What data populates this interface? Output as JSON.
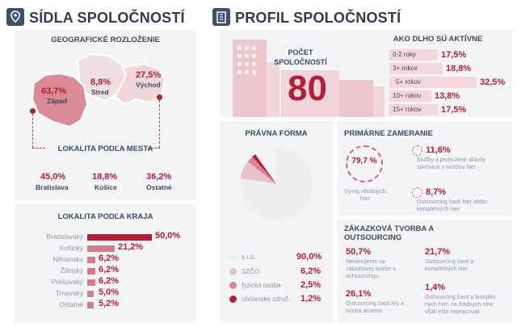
{
  "left": {
    "title": "SÍDLA SPOLOČNOSTÍ",
    "geo_title": "GEOGRAFICKÉ ROZLOŽENIE",
    "regions": [
      {
        "name": "Západ",
        "pct": "63,7%"
      },
      {
        "name": "Stred",
        "pct": "8,8%"
      },
      {
        "name": "Východ",
        "pct": "27,5%"
      }
    ],
    "city_title": "LOKALITA PODĽA MESTA",
    "cities": [
      {
        "name": "Bratislava",
        "pct": "45,0%"
      },
      {
        "name": "Košice",
        "pct": "18,8%"
      },
      {
        "name": "Ostatné",
        "pct": "36,2%"
      }
    ],
    "kraj_title": "LOKALITA PODĽA KRAJA",
    "kraje": [
      {
        "name": "Bratislavský",
        "pct": "50,0%",
        "value": 50.0
      },
      {
        "name": "Košický",
        "pct": "21,2%",
        "value": 21.2
      },
      {
        "name": "Nitriansky",
        "pct": "6,2%",
        "value": 6.2
      },
      {
        "name": "Žilinský",
        "pct": "6,2%",
        "value": 6.2
      },
      {
        "name": "Prešovský",
        "pct": "6,2%",
        "value": 6.2
      },
      {
        "name": "Trnavský",
        "pct": "5,0%",
        "value": 5.0
      },
      {
        "name": "Ostatné",
        "pct": "5,2%",
        "value": 5.2
      }
    ]
  },
  "right": {
    "title": "PROFIL SPOLOČNOSTÍ",
    "count_label": "POČET SPOLOČNOSTÍ",
    "count": "80",
    "age_title": "AKO DLHO SÚ AKTÍVNE",
    "ages": [
      {
        "name": "0-2 roky",
        "pct": "17,5%"
      },
      {
        "name": "3+ rokov",
        "pct": "18,8%"
      },
      {
        "name": "5+ rokov",
        "pct": "32,5%"
      },
      {
        "name": "10+ rokov",
        "pct": "13,8%"
      },
      {
        "name": "15+ rokov",
        "pct": "17,5%"
      }
    ],
    "legal_title": "PRÁVNA FORMA",
    "legal": [
      {
        "name": "s.r.o.",
        "pct": "90,0%",
        "value": 90.0,
        "color": "#eeeef1"
      },
      {
        "name": "SZČO",
        "pct": "6,2%",
        "value": 6.2,
        "color": "#e8c3ca"
      },
      {
        "name": "fyzická osoba",
        "pct": "2,5%",
        "value": 2.5,
        "color": "#d98593"
      },
      {
        "name": "občianske združ.",
        "pct": "1,2%",
        "value": 1.2,
        "color": "#b21f36"
      }
    ],
    "focus_title": "PRIMÁRNE ZAMERANIE",
    "focus_main_pct": "79,7 %",
    "focus_main_label": "Vývoj vlastných hier",
    "focus_items": [
      {
        "pct": "11,6%",
        "label": "Služby a pridružené aktivity súvisiace s tvorbou hier"
      },
      {
        "pct": "8,7%",
        "label": "Outsourcing častí hier alebo kompletných hier"
      }
    ],
    "out_title": "ZÁKAZKOVÁ TVORBA A OUTSOURCING",
    "out_items": [
      {
        "pct": "50,7%",
        "label": "Nevenujeme sa zákazkovej tvorbe a outsourcingu"
      },
      {
        "pct": "21,7%",
        "label": "Outsourcing častí a kompletných hier"
      },
      {
        "pct": "26,1%",
        "label": "Outsourcing častí hry a tvorba assetov"
      },
      {
        "pct": "1,4%",
        "label": "Outsourcing častí a komplet-ných hier, na žiadnych sme však ešte nepracovali"
      }
    ]
  },
  "colors": {
    "accent": "#b21f36",
    "bar": "#cf7f8b",
    "panel": "#f4f4f6",
    "navy": "#3f4f66"
  }
}
